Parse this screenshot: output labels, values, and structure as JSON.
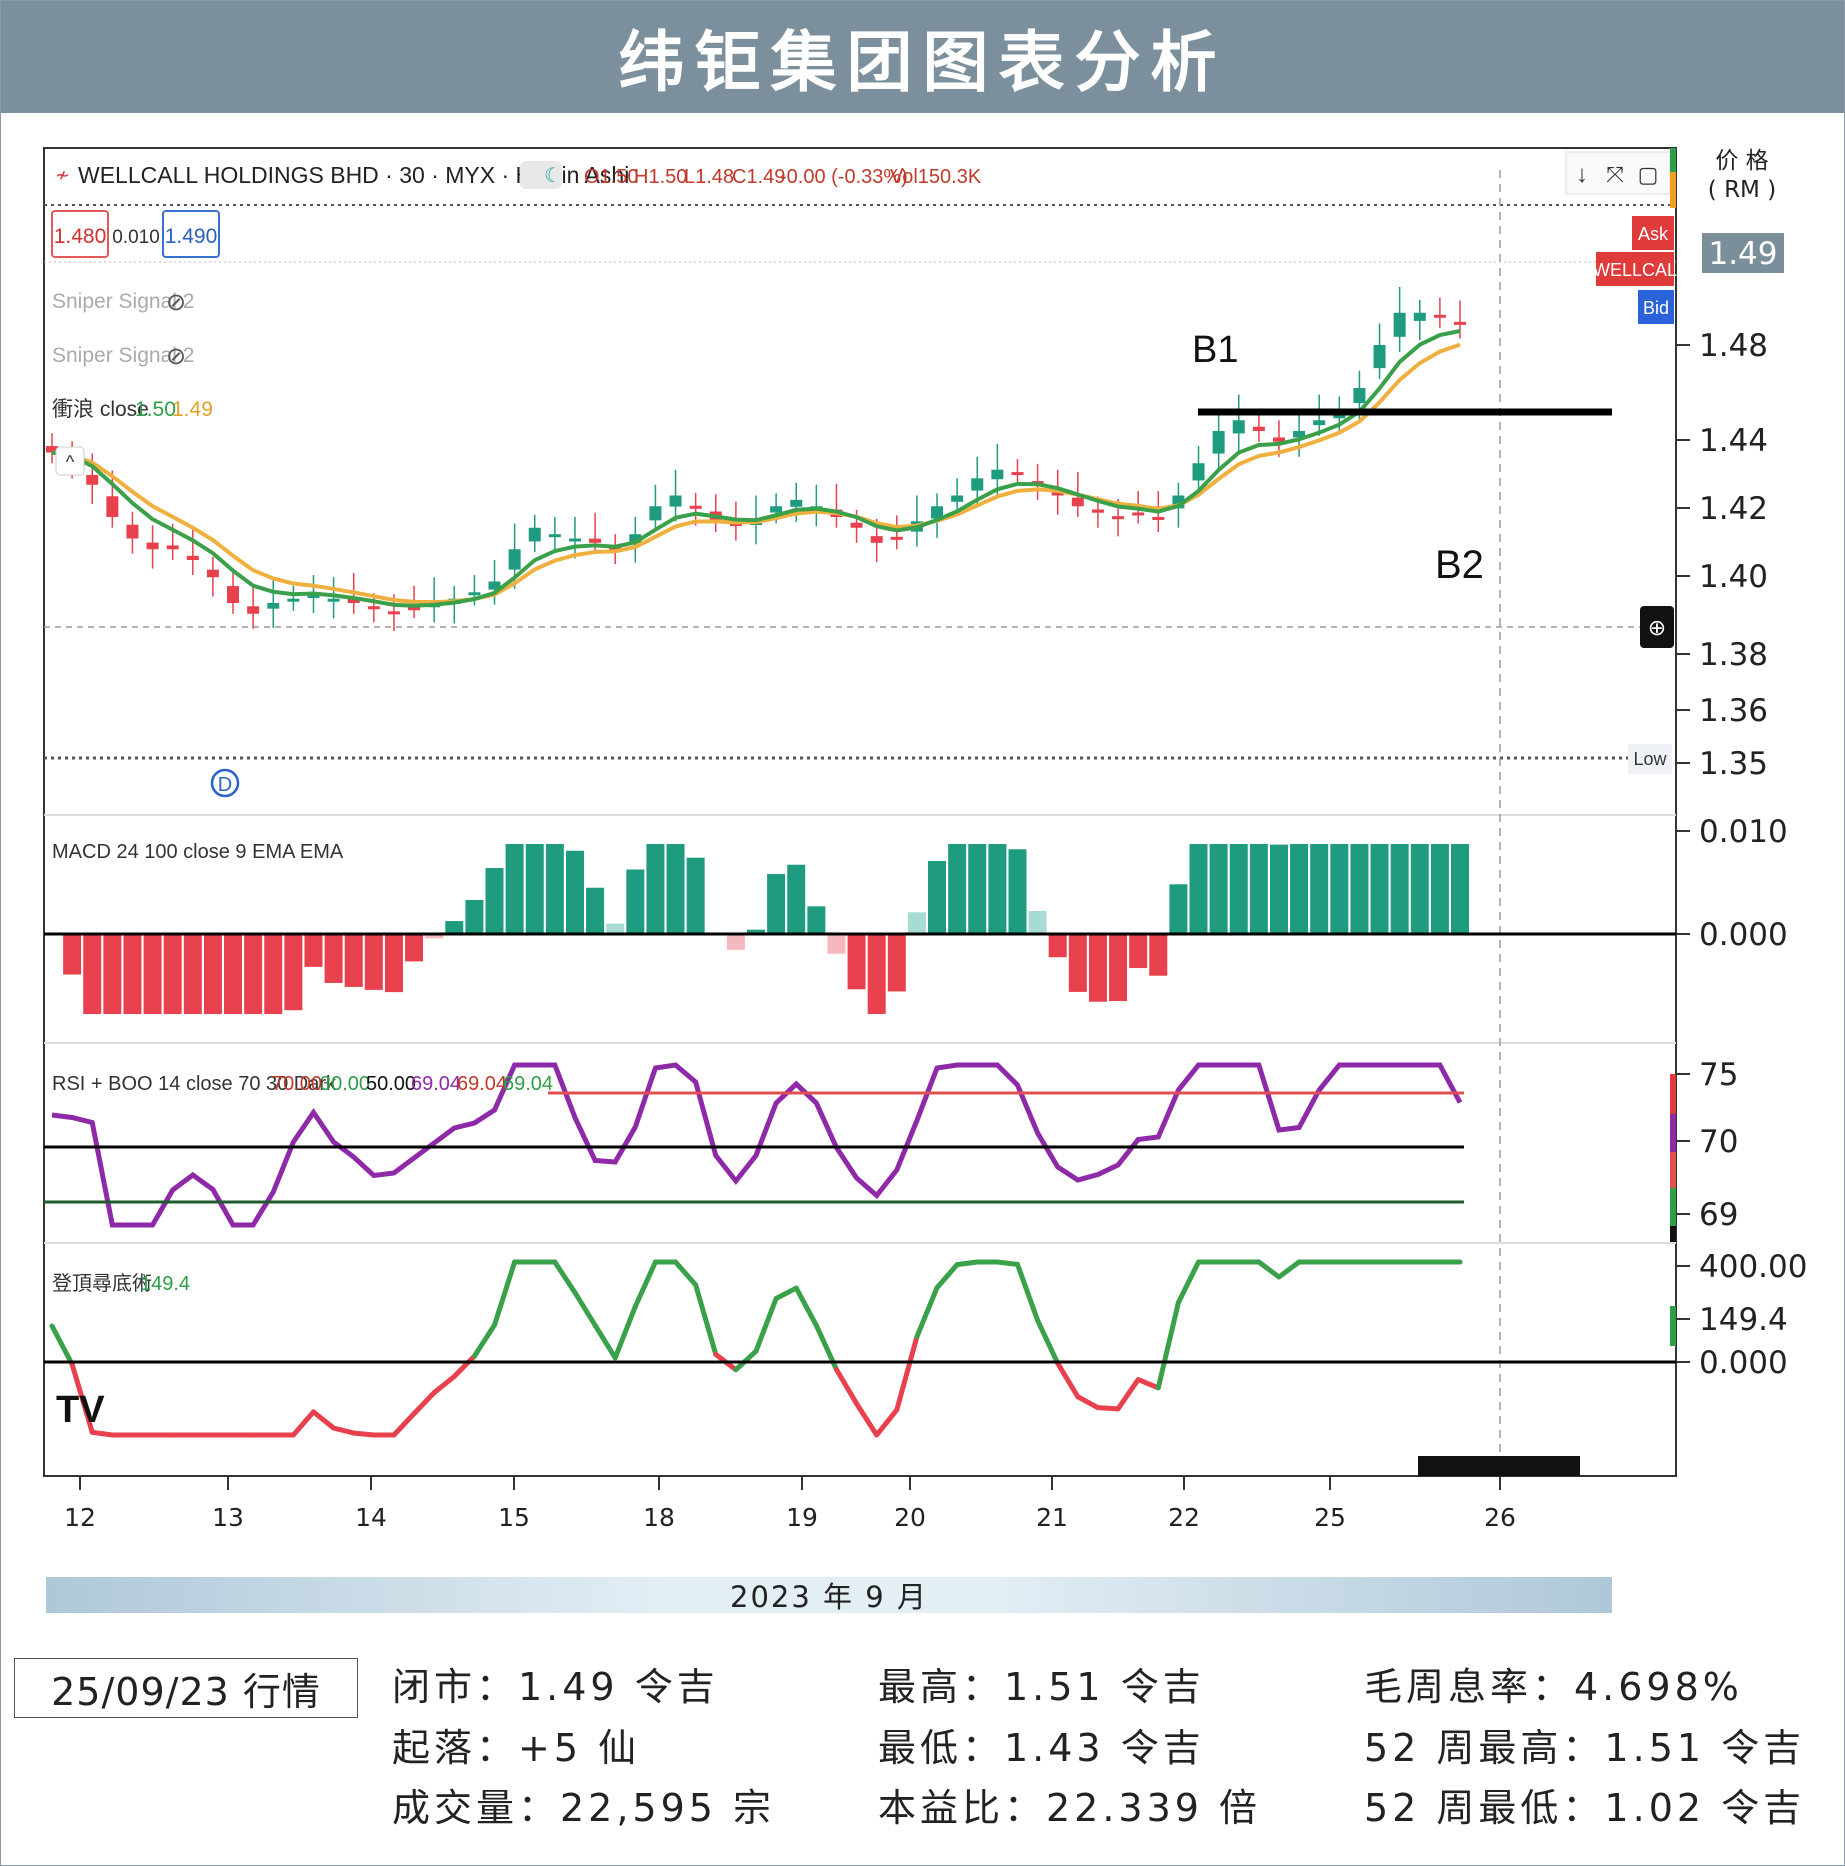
{
  "title": "纬钜集团图表分析",
  "header": {
    "symbol": "WELLCALL HOLDINGS BHD · 30 · MYX · Heikin Ashi",
    "ohlc": {
      "o": "O1.50",
      "h": "H1.50",
      "l": "L1.48",
      "c": "C1.49",
      "chg": "-0.00 (-0.33%)",
      "vol": "Vol150.3K"
    },
    "bid_box": "1.480",
    "spread": "0.010",
    "ask_box": "1.490",
    "sniper1": "Sniper Signal 2",
    "sniper2": "Sniper Signal 2",
    "wave_label": "衝浪 close",
    "wave_v1": "1.50",
    "wave_v2": "1.49"
  },
  "price_axis": {
    "unit_line1": "价 格",
    "unit_line2": "( RM )",
    "ticks": [
      "1.48",
      "1.44",
      "1.42",
      "1.40",
      "1.38",
      "1.36",
      "1.35"
    ],
    "current": "1.49",
    "tags": {
      "ask": "Ask",
      "name": "WELLCAL",
      "bid": "Bid",
      "low": "Low"
    }
  },
  "annotations": {
    "b1": "B1",
    "b2": "B2",
    "d_marker": "D"
  },
  "macd": {
    "label": "MACD 24 100 close 9 EMA EMA",
    "ticks": [
      "0.010",
      "0.000"
    ]
  },
  "rsi": {
    "label": "RSI + BOO 14 close 70 30 Dark",
    "vals": [
      "70.00",
      "30.00",
      "50.00",
      "69.04",
      "69.04",
      "69.04"
    ],
    "ticks": [
      "75",
      "70",
      "69"
    ]
  },
  "osc": {
    "label": "登頂尋底術",
    "value": "149.4",
    "ticks": [
      "400.00",
      "149.4",
      "0.000"
    ]
  },
  "chart_data": {
    "type": "candlestick",
    "title": "纬钜集团图表分析",
    "x_ticks": [
      "12",
      "13",
      "14",
      "15",
      "18",
      "19",
      "20",
      "21",
      "22",
      "25",
      "26"
    ],
    "x_label": "2023 年 9 月",
    "y_label": "价 格 ( RM )",
    "approx_closes": [
      1.43,
      1.425,
      1.415,
      1.4,
      1.39,
      1.385,
      1.385,
      1.38,
      1.372,
      1.36,
      1.355,
      1.36,
      1.362,
      1.365,
      1.362,
      1.36,
      1.358,
      1.356,
      1.358,
      1.36,
      1.362,
      1.365,
      1.37,
      1.385,
      1.395,
      1.392,
      1.39,
      1.388,
      1.385,
      1.392,
      1.405,
      1.41,
      1.405,
      1.398,
      1.396,
      1.398,
      1.405,
      1.408,
      1.405,
      1.4,
      1.395,
      1.388,
      1.39,
      1.398,
      1.405,
      1.41,
      1.418,
      1.422,
      1.42,
      1.415,
      1.41,
      1.405,
      1.402,
      1.4,
      1.402,
      1.4,
      1.41,
      1.425,
      1.44,
      1.445,
      1.44,
      1.435,
      1.44,
      1.445,
      1.45,
      1.46,
      1.48,
      1.495,
      1.495,
      1.493,
      1.49
    ],
    "levels": {
      "B1": 1.445,
      "Low": 1.35,
      "last": 1.49
    }
  },
  "stats": {
    "date": "25/09/23 行情",
    "close": "闭市：1.49 令吉",
    "change": "起落：+5 仙",
    "volume": "成交量：22,595 宗",
    "high": "最高：1.51 令吉",
    "low": "最低：1.43 令吉",
    "pe": "本益比：22.339 倍",
    "dy": "毛周息率：4.698%",
    "high52": "52 周最高：1.51 令吉",
    "low52": "52 周最低：1.02 令吉"
  }
}
